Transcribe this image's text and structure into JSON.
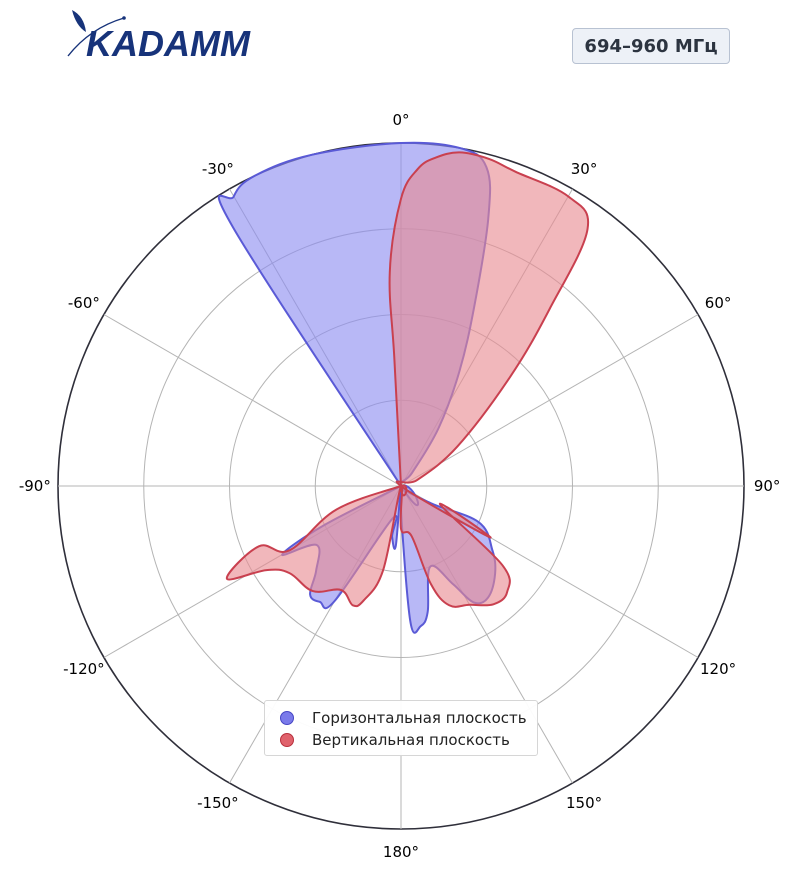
{
  "logo": {
    "text": "KADAMM",
    "color": "#17337a"
  },
  "badge": {
    "label": "694–960 МГц"
  },
  "chart_data": {
    "type": "polar-area",
    "theta_direction": "clockwise",
    "theta_zero": "top",
    "angular_ticks": [
      "0°",
      "30°",
      "60°",
      "90°",
      "120°",
      "150°",
      "180°",
      "-150°",
      "-120°",
      "-90°",
      "-60°",
      "-30°"
    ],
    "radial_range": [
      0,
      4
    ],
    "radial_rings": [
      1,
      2,
      3,
      4
    ],
    "grid": true,
    "legend_position": "bottom-center",
    "series": [
      {
        "name": "Горизонтальная плоскость",
        "color": "#5a5ad6",
        "fill": "#8c8cf0",
        "points": [
          [
            0,
            0
          ],
          [
            -33,
            3.6
          ],
          [
            -30,
            3.9
          ],
          [
            -25,
            4.0
          ],
          [
            -15,
            4.0
          ],
          [
            0,
            4.0
          ],
          [
            10,
            4.0
          ],
          [
            15,
            3.85
          ],
          [
            18,
            3.3
          ],
          [
            22,
            2.3
          ],
          [
            27,
            1.5
          ],
          [
            33,
            0.8
          ],
          [
            40,
            0.2
          ],
          [
            90,
            0
          ],
          [
            120,
            0.4
          ],
          [
            115,
            1.0
          ],
          [
            125,
            1.3
          ],
          [
            133,
            1.5
          ],
          [
            142,
            1.65
          ],
          [
            148,
            1.6
          ],
          [
            152,
            1.3
          ],
          [
            160,
            1.0
          ],
          [
            168,
            1.5
          ],
          [
            172,
            1.65
          ],
          [
            176,
            1.6
          ],
          [
            179,
            0.4
          ],
          [
            180,
            0
          ],
          [
            -175,
            0.7
          ],
          [
            -170,
            0.6
          ],
          [
            -165,
            0.4
          ],
          [
            -150,
            1.55
          ],
          [
            -145,
            1.65
          ],
          [
            -140,
            1.65
          ],
          [
            -135,
            1.4
          ],
          [
            -125,
            1.2
          ],
          [
            -120,
            1.6
          ],
          [
            -117,
            1.0
          ],
          [
            -100,
            0
          ]
        ]
      },
      {
        "name": "Вертикальная плоскость",
        "color": "#c9404f",
        "fill": "#e88a92",
        "points": [
          [
            0,
            0
          ],
          [
            -3,
            1.5
          ],
          [
            -3,
            2.5
          ],
          [
            0,
            3.35
          ],
          [
            3,
            3.7
          ],
          [
            6,
            3.85
          ],
          [
            10,
            3.95
          ],
          [
            15,
            3.95
          ],
          [
            20,
            3.9
          ],
          [
            30,
            3.9
          ],
          [
            36,
            3.7
          ],
          [
            40,
            2.7
          ],
          [
            45,
            1.8
          ],
          [
            55,
            0.8
          ],
          [
            70,
            0.2
          ],
          [
            90,
            0
          ],
          [
            120,
            1.2
          ],
          [
            115,
            0.5
          ],
          [
            128,
            1.5
          ],
          [
            135,
            1.75
          ],
          [
            142,
            1.75
          ],
          [
            150,
            1.6
          ],
          [
            158,
            1.5
          ],
          [
            163,
            1.2
          ],
          [
            168,
            0.6
          ],
          [
            180,
            0.5
          ],
          [
            180,
            0
          ],
          [
            -168,
            1.0
          ],
          [
            -162,
            1.4
          ],
          [
            -158,
            1.5
          ],
          [
            -150,
            1.4
          ],
          [
            -140,
            1.6
          ],
          [
            -128,
            1.65
          ],
          [
            -122,
            1.85
          ],
          [
            -118,
            2.3
          ],
          [
            -113,
            1.8
          ],
          [
            -120,
            1.5
          ],
          [
            -110,
            0.8
          ],
          [
            -100,
            0
          ]
        ]
      }
    ]
  }
}
